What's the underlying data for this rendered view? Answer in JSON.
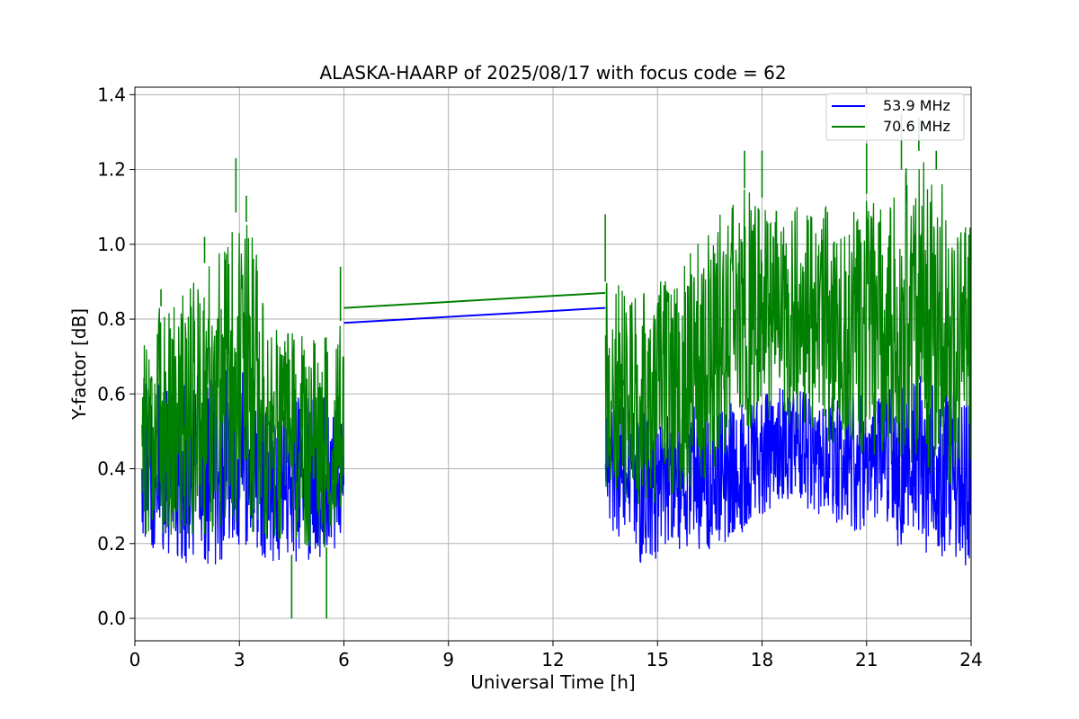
{
  "chart_data": {
    "type": "line",
    "title": "ALASKA-HAARP of 2025/08/17 with focus code = 62",
    "xlabel": "Universal Time [h]",
    "ylabel": "Y-factor [dB]",
    "xlim": [
      0,
      24
    ],
    "ylim": [
      -0.06,
      1.42
    ],
    "xticks": [
      0,
      3,
      6,
      9,
      12,
      15,
      18,
      21,
      24
    ],
    "xtick_labels": [
      "0",
      "3",
      "6",
      "9",
      "12",
      "15",
      "18",
      "21",
      "24"
    ],
    "yticks": [
      0.0,
      0.2,
      0.4,
      0.6,
      0.8,
      1.0,
      1.2,
      1.4
    ],
    "ytick_labels": [
      "0.0",
      "0.2",
      "0.4",
      "0.6",
      "0.8",
      "1.0",
      "1.2",
      "1.4"
    ],
    "grid": true,
    "legend_position": "top-right",
    "series": [
      {
        "name": "53.9 MHz",
        "color": "#0000ff",
        "envelope": {
          "x": [
            0.2,
            1.0,
            2.0,
            3.0,
            4.0,
            5.0,
            6.0,
            13.5,
            14.5,
            15.5,
            16.5,
            17.5,
            18.5,
            19.5,
            20.5,
            21.5,
            22.5,
            23.5,
            24.0
          ],
          "upper": [
            0.65,
            0.62,
            0.66,
            0.68,
            0.62,
            0.6,
            0.6,
            0.62,
            0.55,
            0.55,
            0.58,
            0.6,
            0.62,
            0.6,
            0.62,
            0.62,
            0.65,
            0.62,
            0.6
          ],
          "lower": [
            0.2,
            0.15,
            0.12,
            0.18,
            0.15,
            0.14,
            0.2,
            0.25,
            0.15,
            0.17,
            0.18,
            0.22,
            0.32,
            0.28,
            0.24,
            0.2,
            0.18,
            0.12,
            0.15
          ]
        },
        "gap_line": {
          "x": [
            6.0,
            13.5
          ],
          "y": [
            0.79,
            0.83
          ]
        }
      },
      {
        "name": "70.6 MHz",
        "color": "#008000",
        "envelope": {
          "x": [
            0.2,
            1.0,
            2.0,
            3.0,
            3.5,
            4.0,
            5.0,
            6.0,
            13.5,
            14.5,
            15.5,
            16.5,
            17.5,
            18.5,
            19.5,
            20.5,
            21.5,
            22.5,
            23.5,
            24.0
          ],
          "upper": [
            0.8,
            0.85,
            0.95,
            1.1,
            1.0,
            0.78,
            0.75,
            0.8,
            0.9,
            0.88,
            0.92,
            1.05,
            1.15,
            1.1,
            1.1,
            1.12,
            1.15,
            1.25,
            1.15,
            1.05
          ],
          "lower": [
            0.22,
            0.22,
            0.22,
            0.24,
            0.22,
            0.18,
            0.16,
            0.22,
            0.32,
            0.3,
            0.32,
            0.38,
            0.48,
            0.52,
            0.48,
            0.45,
            0.42,
            0.38,
            0.35,
            0.4
          ]
        },
        "peaks": [
          {
            "x": 0.75,
            "y": 0.88
          },
          {
            "x": 2.0,
            "y": 1.02
          },
          {
            "x": 2.9,
            "y": 1.23
          },
          {
            "x": 3.2,
            "y": 1.13
          },
          {
            "x": 4.5,
            "y": 0.0
          },
          {
            "x": 5.5,
            "y": 0.0
          },
          {
            "x": 5.9,
            "y": 0.94
          },
          {
            "x": 13.5,
            "y": 1.08
          },
          {
            "x": 17.5,
            "y": 1.25
          },
          {
            "x": 18.0,
            "y": 1.25
          },
          {
            "x": 21.0,
            "y": 1.27
          },
          {
            "x": 22.0,
            "y": 1.35
          },
          {
            "x": 22.5,
            "y": 1.34
          },
          {
            "x": 23.0,
            "y": 1.25
          }
        ],
        "gap_line": {
          "x": [
            6.0,
            13.5
          ],
          "y": [
            0.83,
            0.87
          ]
        }
      }
    ]
  }
}
